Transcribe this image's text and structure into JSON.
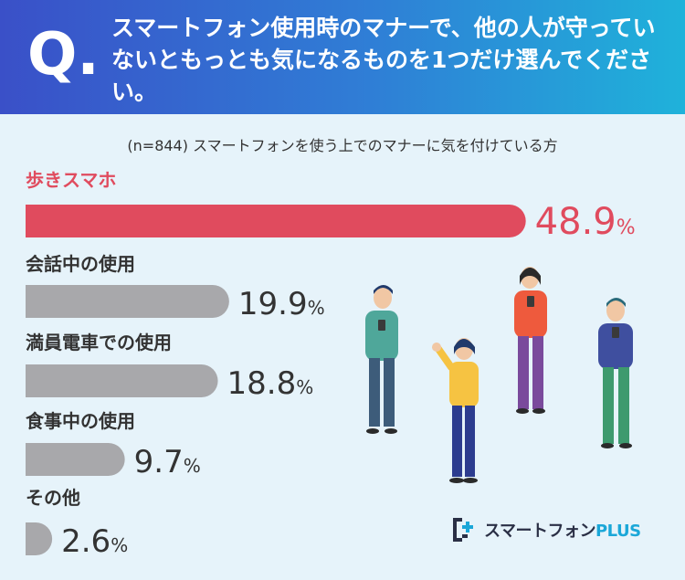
{
  "header": {
    "q_label": "Q.",
    "question": "スマートフォン使用時のマナーで、他の人が守っていないともっとも気になるものを1つだけ選んでください。"
  },
  "subtitle": "(n=844) スマートフォンを使う上でのマナーに気を付けている方",
  "chart_data": {
    "type": "bar",
    "orientation": "horizontal",
    "unit": "%",
    "categories": [
      "歩きスマホ",
      "会話中の使用",
      "満員電車での使用",
      "食事中の使用",
      "その他"
    ],
    "values": [
      48.9,
      19.9,
      18.8,
      9.7,
      2.6
    ],
    "highlight_color": "#e04b5e",
    "bar_color": "#a8a8ab",
    "value_color_default": "#333333",
    "legend": "none",
    "grid": false
  },
  "brand": {
    "name": "スマートフォン",
    "suffix": "PLUS"
  }
}
